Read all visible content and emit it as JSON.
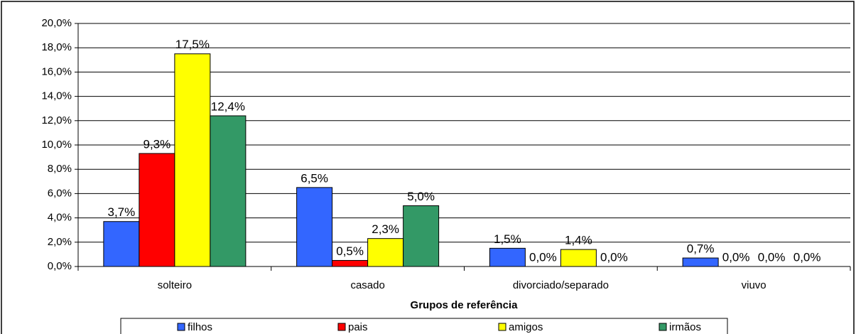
{
  "chart_data": {
    "type": "bar",
    "x_label": "Grupos de referência",
    "categories": [
      "solteiro",
      "casado",
      "divorciado/separado",
      "viuvo"
    ],
    "series": [
      {
        "name": "filhos",
        "color": "#3366ff",
        "values": [
          3.7,
          6.5,
          1.5,
          0.7
        ],
        "value_labels": [
          "3,7%",
          "6,5%",
          "1,5%",
          "0,7%"
        ]
      },
      {
        "name": "pais",
        "color": "#ff0000",
        "values": [
          9.3,
          0.5,
          0.0,
          0.0
        ],
        "value_labels": [
          "9,3%",
          "0,5%",
          "0,0%",
          "0,0%"
        ]
      },
      {
        "name": "amigos",
        "color": "#ffff00",
        "values": [
          17.5,
          2.3,
          1.4,
          0.0
        ],
        "value_labels": [
          "17,5%",
          "2,3%",
          "1,4%",
          "0,0%"
        ]
      },
      {
        "name": "irmãos",
        "color": "#339966",
        "values": [
          12.4,
          5.0,
          0.0,
          0.0
        ],
        "value_labels": [
          "12,4%",
          "5,0%",
          "0,0%",
          "0,0%"
        ]
      }
    ],
    "ylim": [
      0,
      20
    ],
    "yticks": [
      {
        "value": 0,
        "label": "0,0%"
      },
      {
        "value": 2,
        "label": "2,0%"
      },
      {
        "value": 4,
        "label": "4,0%"
      },
      {
        "value": 6,
        "label": "6,0%"
      },
      {
        "value": 8,
        "label": "8,0%"
      },
      {
        "value": 10,
        "label": "10,0%"
      },
      {
        "value": 12,
        "label": "12,0%"
      },
      {
        "value": 14,
        "label": "14,0%"
      },
      {
        "value": 16,
        "label": "16,0%"
      },
      {
        "value": 18,
        "label": "18,0%"
      },
      {
        "value": 20,
        "label": "20,0%"
      }
    ],
    "grid": true,
    "legend": "bottom"
  }
}
